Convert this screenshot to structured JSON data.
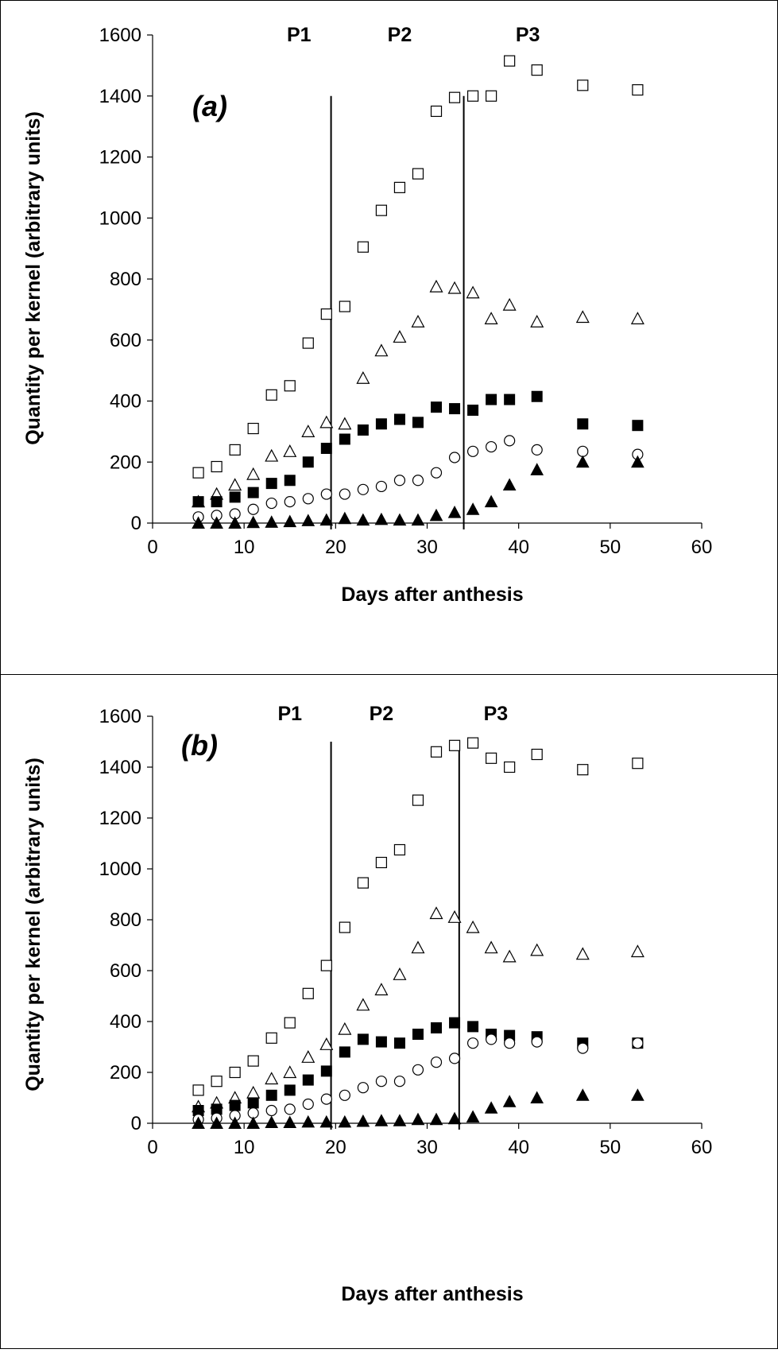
{
  "chart_data": [
    {
      "type": "scatter",
      "panel_label": "(a)",
      "xlabel": "Days after anthesis",
      "ylabel": "Quantity per kernel (arbitrary units)",
      "xlim": [
        0,
        60
      ],
      "ylim": [
        0,
        1600
      ],
      "xticks": [
        0,
        10,
        20,
        30,
        40,
        50,
        60
      ],
      "yticks": [
        0,
        200,
        400,
        600,
        800,
        1000,
        1200,
        1400,
        1600
      ],
      "periods": [
        {
          "label": "P1",
          "x": 16
        },
        {
          "label": "P2",
          "x": 27
        },
        {
          "label": "P3",
          "x": 41
        }
      ],
      "boundaries": [
        {
          "x": 19.5,
          "y_top": 1400
        },
        {
          "x": 34,
          "y_top": 1400
        }
      ],
      "grid": false,
      "series": [
        {
          "marker": "open-square",
          "x": [
            5,
            7,
            9,
            11,
            13,
            15,
            17,
            19,
            21,
            23,
            25,
            27,
            29,
            31,
            33,
            35,
            37,
            39,
            42,
            47,
            53
          ],
          "y": [
            165,
            185,
            240,
            310,
            420,
            450,
            590,
            685,
            710,
            905,
            1025,
            1100,
            1145,
            1350,
            1395,
            1400,
            1400,
            1515,
            1485,
            1435,
            1420
          ]
        },
        {
          "marker": "open-triangle",
          "x": [
            5,
            7,
            9,
            11,
            13,
            15,
            17,
            19,
            21,
            23,
            25,
            27,
            29,
            31,
            33,
            35,
            37,
            39,
            42,
            47,
            53
          ],
          "y": [
            70,
            95,
            125,
            160,
            220,
            235,
            300,
            330,
            325,
            475,
            565,
            610,
            660,
            775,
            770,
            755,
            670,
            715,
            660,
            675,
            670
          ]
        },
        {
          "marker": "filled-square",
          "x": [
            5,
            7,
            9,
            11,
            13,
            15,
            17,
            19,
            21,
            23,
            25,
            27,
            29,
            31,
            33,
            35,
            37,
            39,
            42,
            47,
            53
          ],
          "y": [
            70,
            70,
            85,
            100,
            130,
            140,
            200,
            245,
            275,
            305,
            325,
            340,
            330,
            380,
            375,
            370,
            405,
            405,
            415,
            325,
            320
          ]
        },
        {
          "marker": "open-circle",
          "x": [
            5,
            7,
            9,
            11,
            13,
            15,
            17,
            19,
            21,
            23,
            25,
            27,
            29,
            31,
            33,
            35,
            37,
            39,
            42,
            47,
            53
          ],
          "y": [
            20,
            25,
            30,
            45,
            65,
            70,
            80,
            95,
            95,
            110,
            120,
            140,
            140,
            165,
            215,
            235,
            250,
            270,
            240,
            235,
            225
          ]
        },
        {
          "marker": "filled-triangle",
          "x": [
            5,
            7,
            9,
            11,
            13,
            15,
            17,
            19,
            21,
            23,
            25,
            27,
            29,
            31,
            33,
            35,
            37,
            39,
            42,
            47,
            53
          ],
          "y": [
            0,
            0,
            0,
            2,
            3,
            5,
            8,
            10,
            15,
            10,
            12,
            10,
            10,
            25,
            35,
            45,
            70,
            125,
            175,
            200,
            200
          ]
        }
      ]
    },
    {
      "type": "scatter",
      "panel_label": "(b)",
      "xlabel": "Days after anthesis",
      "ylabel": "Quantity per kernel (arbitrary units)",
      "xlim": [
        0,
        60
      ],
      "ylim": [
        0,
        1600
      ],
      "xticks": [
        0,
        10,
        20,
        30,
        40,
        50,
        60
      ],
      "yticks": [
        0,
        200,
        400,
        600,
        800,
        1000,
        1200,
        1400,
        1600
      ],
      "periods": [
        {
          "label": "P1",
          "x": 15
        },
        {
          "label": "P2",
          "x": 25
        },
        {
          "label": "P3",
          "x": 37.5
        }
      ],
      "boundaries": [
        {
          "x": 19.5,
          "y_top": 1500
        },
        {
          "x": 33.5,
          "y_top": 1500
        }
      ],
      "grid": false,
      "series": [
        {
          "marker": "open-square",
          "x": [
            5,
            7,
            9,
            11,
            13,
            15,
            17,
            19,
            21,
            23,
            25,
            27,
            29,
            31,
            33,
            35,
            37,
            39,
            42,
            47,
            53
          ],
          "y": [
            130,
            165,
            200,
            245,
            335,
            395,
            510,
            620,
            770,
            945,
            1025,
            1075,
            1270,
            1460,
            1485,
            1495,
            1435,
            1400,
            1450,
            1390,
            1415
          ]
        },
        {
          "marker": "open-triangle",
          "x": [
            5,
            7,
            9,
            11,
            13,
            15,
            17,
            19,
            21,
            23,
            25,
            27,
            29,
            31,
            33,
            35,
            37,
            39,
            42,
            47,
            53
          ],
          "y": [
            65,
            80,
            100,
            120,
            175,
            200,
            260,
            310,
            370,
            465,
            525,
            585,
            690,
            825,
            810,
            770,
            690,
            655,
            680,
            665,
            675
          ]
        },
        {
          "marker": "filled-square",
          "x": [
            5,
            7,
            9,
            11,
            13,
            15,
            17,
            19,
            21,
            23,
            25,
            27,
            29,
            31,
            33,
            35,
            37,
            39,
            42,
            47,
            53
          ],
          "y": [
            50,
            55,
            70,
            80,
            110,
            130,
            170,
            205,
            280,
            330,
            320,
            315,
            350,
            375,
            395,
            380,
            350,
            345,
            340,
            315,
            315
          ]
        },
        {
          "marker": "open-circle",
          "x": [
            5,
            7,
            9,
            11,
            13,
            15,
            17,
            19,
            21,
            23,
            25,
            27,
            29,
            31,
            33,
            35,
            37,
            39,
            42,
            47,
            53
          ],
          "y": [
            15,
            20,
            30,
            40,
            50,
            55,
            75,
            95,
            110,
            140,
            165,
            165,
            210,
            240,
            255,
            315,
            330,
            315,
            320,
            295,
            315
          ]
        },
        {
          "marker": "filled-triangle",
          "x": [
            5,
            7,
            9,
            11,
            13,
            15,
            17,
            19,
            21,
            23,
            25,
            27,
            29,
            31,
            33,
            35,
            37,
            39,
            42,
            47,
            53
          ],
          "y": [
            0,
            0,
            0,
            0,
            3,
            3,
            5,
            5,
            5,
            8,
            10,
            10,
            15,
            15,
            18,
            25,
            60,
            85,
            100,
            110,
            110
          ]
        }
      ]
    }
  ]
}
